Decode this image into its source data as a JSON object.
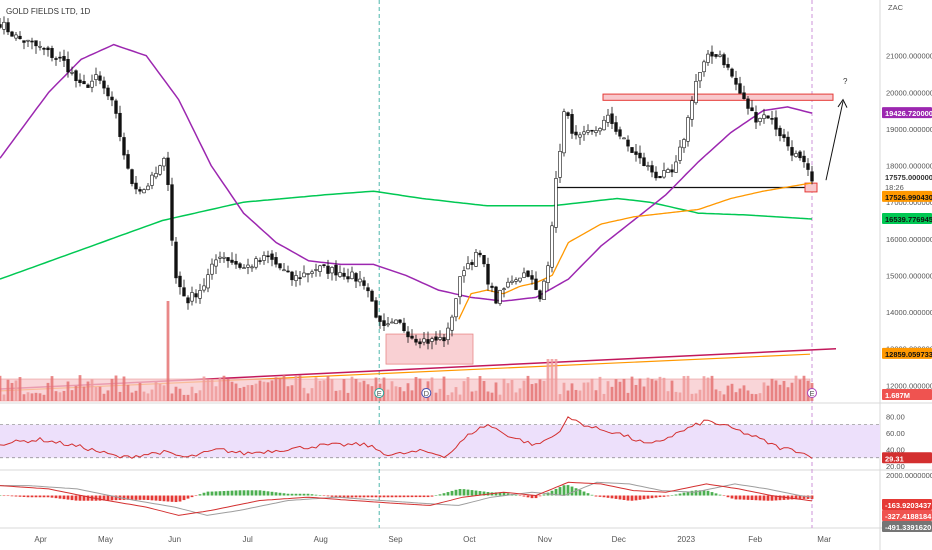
{
  "window": {
    "symbol_title": "GOLD FIELDS LTD, 1D"
  },
  "colors": {
    "up": "#ffffff",
    "down": "#111111",
    "sma50": "#9c27b0",
    "sma200": "#00c853",
    "ma_orange": "#ff9800",
    "trend": "#c2185b",
    "zone": "#f8c8cc",
    "zone_border": "#e57373",
    "vol_up": "#ef9a9a",
    "vol_down": "#e57373",
    "rsi": "#d32f2f",
    "rsi_band": "#ede0fb",
    "macd_line": "#d32f2f",
    "macd_signal": "#9e9e9e",
    "hist_pos": "#4caf50",
    "hist_neg": "#e53935"
  },
  "chart_data": {
    "type": "candlestick",
    "currency": "ZAC",
    "price_axis_ticks": [
      "21000.0000000",
      "20000.0000000",
      "19000.0000000",
      "18000.0000000",
      "17000.0000000",
      "16000.0000000",
      "15000.0000000",
      "14000.0000000",
      "13000.0000000",
      "12000.0000000"
    ],
    "months": [
      "Apr",
      "May",
      "Jun",
      "Jul",
      "Aug",
      "Sep",
      "Oct",
      "Nov",
      "Dec",
      "2023",
      "Feb",
      "Mar"
    ],
    "badges": {
      "sma50": "19426.7200000",
      "last_price": "17575.0000000",
      "countdown": "18:26",
      "ma_orange": "17526.9904308",
      "sma200": "16539.7769455",
      "trend": "12859.0597338",
      "volume": "1.687M",
      "rsi": "29.31",
      "macd_hist": "-163.9203437",
      "macd_line": "-327.4188184",
      "macd_signal": "-491.3391620"
    },
    "rsi_axis": [
      "80.00",
      "60.00",
      "40.00",
      "20.00"
    ],
    "macd_axis": [
      "2000.0000000"
    ],
    "annotations": {
      "question": "?",
      "events": [
        "E",
        "D",
        "E"
      ]
    },
    "anchors": [
      {
        "x": 0.0,
        "y": 21900
      },
      {
        "x": 0.02,
        "y": 21500
      },
      {
        "x": 0.05,
        "y": 21200
      },
      {
        "x": 0.08,
        "y": 20800
      },
      {
        "x": 0.1,
        "y": 20100
      },
      {
        "x": 0.12,
        "y": 20400
      },
      {
        "x": 0.14,
        "y": 19600
      },
      {
        "x": 0.16,
        "y": 17600
      },
      {
        "x": 0.175,
        "y": 17300
      },
      {
        "x": 0.19,
        "y": 17700
      },
      {
        "x": 0.205,
        "y": 18200
      },
      {
        "x": 0.215,
        "y": 15000
      },
      {
        "x": 0.23,
        "y": 14300
      },
      {
        "x": 0.25,
        "y": 14700
      },
      {
        "x": 0.27,
        "y": 15600
      },
      {
        "x": 0.3,
        "y": 15200
      },
      {
        "x": 0.33,
        "y": 15500
      },
      {
        "x": 0.36,
        "y": 14900
      },
      {
        "x": 0.39,
        "y": 15200
      },
      {
        "x": 0.42,
        "y": 15100
      },
      {
        "x": 0.45,
        "y": 14800
      },
      {
        "x": 0.47,
        "y": 13500
      },
      {
        "x": 0.49,
        "y": 13700
      },
      {
        "x": 0.51,
        "y": 13300
      },
      {
        "x": 0.53,
        "y": 13200
      },
      {
        "x": 0.55,
        "y": 13300
      },
      {
        "x": 0.57,
        "y": 15200
      },
      {
        "x": 0.59,
        "y": 15600
      },
      {
        "x": 0.61,
        "y": 14300
      },
      {
        "x": 0.63,
        "y": 14900
      },
      {
        "x": 0.65,
        "y": 15100
      },
      {
        "x": 0.665,
        "y": 14300
      },
      {
        "x": 0.675,
        "y": 15400
      },
      {
        "x": 0.685,
        "y": 17600
      },
      {
        "x": 0.695,
        "y": 19500
      },
      {
        "x": 0.71,
        "y": 18700
      },
      {
        "x": 0.73,
        "y": 18900
      },
      {
        "x": 0.75,
        "y": 19300
      },
      {
        "x": 0.77,
        "y": 18600
      },
      {
        "x": 0.79,
        "y": 18100
      },
      {
        "x": 0.81,
        "y": 17700
      },
      {
        "x": 0.83,
        "y": 17800
      },
      {
        "x": 0.845,
        "y": 19000
      },
      {
        "x": 0.855,
        "y": 20200
      },
      {
        "x": 0.87,
        "y": 20900
      },
      {
        "x": 0.885,
        "y": 21100
      },
      {
        "x": 0.9,
        "y": 20500
      },
      {
        "x": 0.915,
        "y": 19800
      },
      {
        "x": 0.93,
        "y": 19300
      },
      {
        "x": 0.945,
        "y": 19400
      },
      {
        "x": 0.96,
        "y": 18900
      },
      {
        "x": 0.975,
        "y": 18400
      },
      {
        "x": 0.99,
        "y": 18000
      },
      {
        "x": 1.0,
        "y": 17575
      }
    ],
    "sma50_anchors": [
      {
        "x": 0.0,
        "y": 18200
      },
      {
        "x": 0.06,
        "y": 20000
      },
      {
        "x": 0.1,
        "y": 20900
      },
      {
        "x": 0.14,
        "y": 21300
      },
      {
        "x": 0.18,
        "y": 21000
      },
      {
        "x": 0.22,
        "y": 19800
      },
      {
        "x": 0.26,
        "y": 18000
      },
      {
        "x": 0.3,
        "y": 16700
      },
      {
        "x": 0.34,
        "y": 15900
      },
      {
        "x": 0.38,
        "y": 15400
      },
      {
        "x": 0.42,
        "y": 15300
      },
      {
        "x": 0.46,
        "y": 15300
      },
      {
        "x": 0.5,
        "y": 15000
      },
      {
        "x": 0.54,
        "y": 14600
      },
      {
        "x": 0.58,
        "y": 14400
      },
      {
        "x": 0.62,
        "y": 14300
      },
      {
        "x": 0.66,
        "y": 14400
      },
      {
        "x": 0.7,
        "y": 14900
      },
      {
        "x": 0.74,
        "y": 15800
      },
      {
        "x": 0.78,
        "y": 16500
      },
      {
        "x": 0.82,
        "y": 17200
      },
      {
        "x": 0.86,
        "y": 18100
      },
      {
        "x": 0.9,
        "y": 18900
      },
      {
        "x": 0.94,
        "y": 19500
      },
      {
        "x": 0.97,
        "y": 19600
      },
      {
        "x": 1.0,
        "y": 19430
      }
    ],
    "sma200_anchors": [
      {
        "x": 0.0,
        "y": 14900
      },
      {
        "x": 0.1,
        "y": 15700
      },
      {
        "x": 0.2,
        "y": 16500
      },
      {
        "x": 0.3,
        "y": 17000
      },
      {
        "x": 0.4,
        "y": 17200
      },
      {
        "x": 0.46,
        "y": 17300
      },
      {
        "x": 0.52,
        "y": 17100
      },
      {
        "x": 0.6,
        "y": 16900
      },
      {
        "x": 0.68,
        "y": 16900
      },
      {
        "x": 0.76,
        "y": 17100
      },
      {
        "x": 0.8,
        "y": 17000
      },
      {
        "x": 0.86,
        "y": 16700
      },
      {
        "x": 0.92,
        "y": 16650
      },
      {
        "x": 1.0,
        "y": 16540
      }
    ],
    "orange_anchors": [
      {
        "x": 0.565,
        "y": 13800
      },
      {
        "x": 0.58,
        "y": 14500
      },
      {
        "x": 0.6,
        "y": 14600
      },
      {
        "x": 0.62,
        "y": 14500
      },
      {
        "x": 0.64,
        "y": 14700
      },
      {
        "x": 0.66,
        "y": 14800
      },
      {
        "x": 0.68,
        "y": 15000
      },
      {
        "x": 0.7,
        "y": 15900
      },
      {
        "x": 0.74,
        "y": 16400
      },
      {
        "x": 0.78,
        "y": 16600
      },
      {
        "x": 0.82,
        "y": 16700
      },
      {
        "x": 0.86,
        "y": 16800
      },
      {
        "x": 0.9,
        "y": 17100
      },
      {
        "x": 0.94,
        "y": 17300
      },
      {
        "x": 1.0,
        "y": 17527
      }
    ],
    "rsi_anchors": [
      {
        "x": 0.0,
        "y": 47
      },
      {
        "x": 0.05,
        "y": 52
      },
      {
        "x": 0.1,
        "y": 43
      },
      {
        "x": 0.15,
        "y": 30
      },
      {
        "x": 0.2,
        "y": 37
      },
      {
        "x": 0.23,
        "y": 30
      },
      {
        "x": 0.27,
        "y": 40
      },
      {
        "x": 0.3,
        "y": 35
      },
      {
        "x": 0.35,
        "y": 40
      },
      {
        "x": 0.4,
        "y": 45
      },
      {
        "x": 0.45,
        "y": 46
      },
      {
        "x": 0.48,
        "y": 33
      },
      {
        "x": 0.52,
        "y": 38
      },
      {
        "x": 0.55,
        "y": 32
      },
      {
        "x": 0.58,
        "y": 60
      },
      {
        "x": 0.6,
        "y": 70
      },
      {
        "x": 0.63,
        "y": 55
      },
      {
        "x": 0.66,
        "y": 45
      },
      {
        "x": 0.685,
        "y": 58
      },
      {
        "x": 0.7,
        "y": 78
      },
      {
        "x": 0.73,
        "y": 66
      },
      {
        "x": 0.76,
        "y": 60
      },
      {
        "x": 0.8,
        "y": 45
      },
      {
        "x": 0.84,
        "y": 62
      },
      {
        "x": 0.87,
        "y": 75
      },
      {
        "x": 0.9,
        "y": 66
      },
      {
        "x": 0.93,
        "y": 55
      },
      {
        "x": 0.96,
        "y": 42
      },
      {
        "x": 0.985,
        "y": 38
      },
      {
        "x": 1.0,
        "y": 29.31
      }
    ],
    "macd_anchors": [
      {
        "x": 0.0,
        "y": 600
      },
      {
        "x": 0.06,
        "y": 400
      },
      {
        "x": 0.12,
        "y": -200
      },
      {
        "x": 0.18,
        "y": -700
      },
      {
        "x": 0.22,
        "y": -1200
      },
      {
        "x": 0.26,
        "y": -900
      },
      {
        "x": 0.32,
        "y": -300
      },
      {
        "x": 0.38,
        "y": -100
      },
      {
        "x": 0.42,
        "y": -250
      },
      {
        "x": 0.48,
        "y": -450
      },
      {
        "x": 0.53,
        "y": -600
      },
      {
        "x": 0.57,
        "y": -100
      },
      {
        "x": 0.62,
        "y": 200
      },
      {
        "x": 0.66,
        "y": 0
      },
      {
        "x": 0.7,
        "y": 800
      },
      {
        "x": 0.74,
        "y": 700
      },
      {
        "x": 0.78,
        "y": 300
      },
      {
        "x": 0.82,
        "y": 200
      },
      {
        "x": 0.87,
        "y": 700
      },
      {
        "x": 0.91,
        "y": 400
      },
      {
        "x": 0.95,
        "y": 0
      },
      {
        "x": 1.0,
        "y": -327
      }
    ],
    "rsi_ylim": [
      20,
      90
    ],
    "macd_ylim": [
      -1600,
      1300
    ],
    "price_ylim": [
      11600,
      22300
    ]
  }
}
